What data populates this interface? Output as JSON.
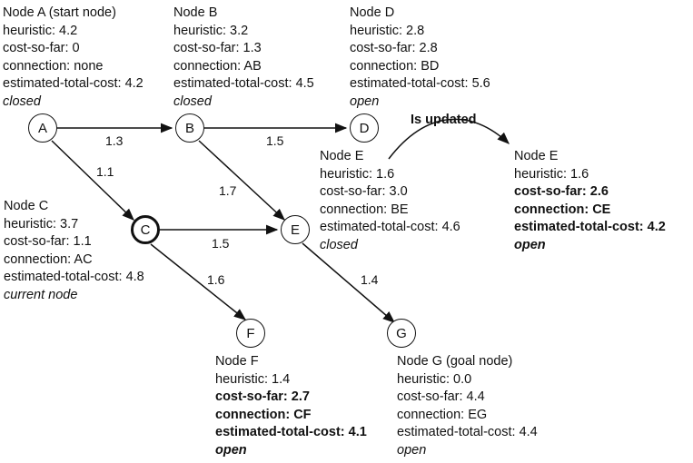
{
  "nodes": {
    "A": {
      "label": "A"
    },
    "B": {
      "label": "B"
    },
    "C": {
      "label": "C"
    },
    "D": {
      "label": "D"
    },
    "E": {
      "label": "E"
    },
    "F": {
      "label": "F"
    },
    "G": {
      "label": "G"
    }
  },
  "edges": {
    "AB": {
      "cost": "1.3"
    },
    "BD": {
      "cost": "1.5"
    },
    "AC": {
      "cost": "1.1"
    },
    "BE": {
      "cost": "1.7"
    },
    "CE": {
      "cost": "1.5"
    },
    "CF": {
      "cost": "1.6"
    },
    "EG": {
      "cost": "1.4"
    }
  },
  "update_label": "Is updated",
  "info": {
    "A": {
      "title": "Node A (start node)",
      "heuristic": "heuristic: 4.2",
      "cost": "cost-so-far: 0",
      "connection": "connection: none",
      "total": "estimated-total-cost: 4.2",
      "status": "closed"
    },
    "B": {
      "title": "Node B",
      "heuristic": "heuristic: 3.2",
      "cost": "cost-so-far: 1.3",
      "connection": "connection: AB",
      "total": "estimated-total-cost: 4.5",
      "status": "closed"
    },
    "D": {
      "title": "Node D",
      "heuristic": "heuristic: 2.8",
      "cost": "cost-so-far: 2.8",
      "connection": "connection: BD",
      "total": "estimated-total-cost: 5.6",
      "status": "open"
    },
    "C": {
      "title": "Node C",
      "heuristic": "heuristic: 3.7",
      "cost": "cost-so-far: 1.1",
      "connection": "connection: AC",
      "total": "estimated-total-cost: 4.8",
      "status": "current node"
    },
    "E_old": {
      "title": "Node E",
      "heuristic": "heuristic: 1.6",
      "cost": "cost-so-far: 3.0",
      "connection": "connection: BE",
      "total": "estimated-total-cost: 4.6",
      "status": "closed"
    },
    "E_new": {
      "title": "Node E",
      "heuristic": "heuristic: 1.6",
      "cost": "cost-so-far: 2.6",
      "connection": "connection: CE",
      "total": "estimated-total-cost: 4.2",
      "status": "open"
    },
    "F": {
      "title": "Node F",
      "heuristic": "heuristic: 1.4",
      "cost": "cost-so-far: 2.7",
      "connection": "connection: CF",
      "total": "estimated-total-cost: 4.1",
      "status": "open"
    },
    "G": {
      "title": "Node G (goal node)",
      "heuristic": "heuristic: 0.0",
      "cost": "cost-so-far: 4.4",
      "connection": "connection: EG",
      "total": "estimated-total-cost: 4.4",
      "status": "open"
    }
  }
}
